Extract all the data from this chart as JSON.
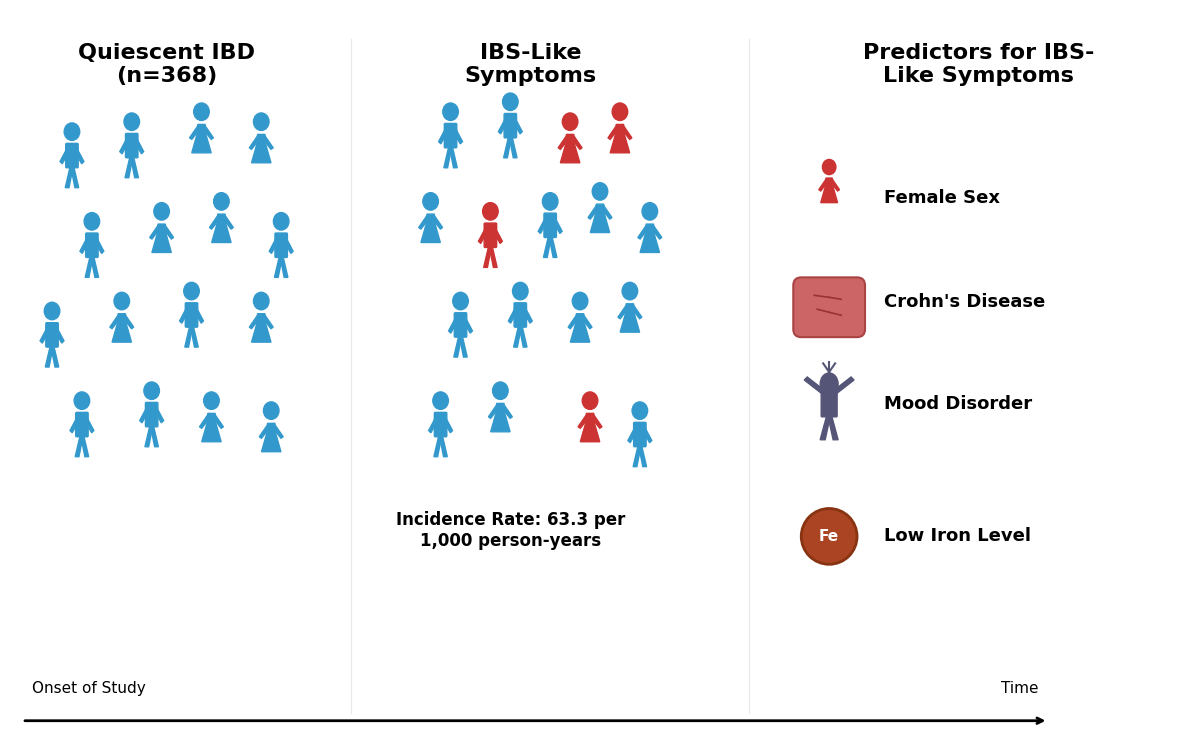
{
  "title_left": "Quiescent IBD\n(n=368)",
  "title_middle": "IBS-Like\nSymptoms",
  "title_right": "Predictors for IBS-\nLike Symptoms",
  "incidence_text": "Incidence Rate: 63.3 per\n1,000 person-years",
  "onset_label": "Onset of Study",
  "time_label": "Time",
  "blue_color": "#3399CC",
  "red_color": "#CC3333",
  "dark_gray": "#555555",
  "predictor_labels": [
    "Female Sex",
    "Crohn's Disease",
    "Mood Disorder",
    "Low Iron Level"
  ],
  "bg_color": "#FFFFFF"
}
